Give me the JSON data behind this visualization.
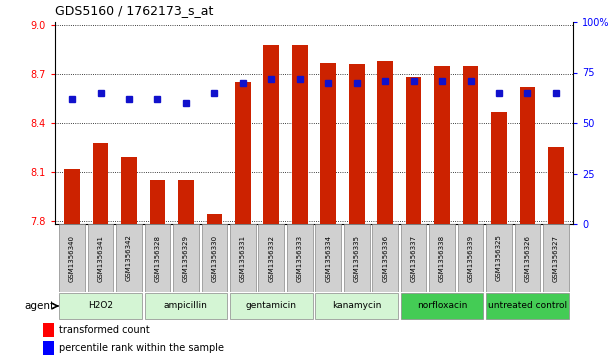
{
  "title": "GDS5160 / 1762173_s_at",
  "samples": [
    "GSM1356340",
    "GSM1356341",
    "GSM1356342",
    "GSM1356328",
    "GSM1356329",
    "GSM1356330",
    "GSM1356331",
    "GSM1356332",
    "GSM1356333",
    "GSM1356334",
    "GSM1356335",
    "GSM1356336",
    "GSM1356337",
    "GSM1356338",
    "GSM1356339",
    "GSM1356325",
    "GSM1356326",
    "GSM1356327"
  ],
  "transformed_counts": [
    8.12,
    8.28,
    8.19,
    8.05,
    8.05,
    7.84,
    8.65,
    8.88,
    8.88,
    8.77,
    8.76,
    8.78,
    8.68,
    8.75,
    8.75,
    8.47,
    8.62,
    8.25
  ],
  "percentile_ranks": [
    62,
    65,
    62,
    62,
    60,
    65,
    70,
    72,
    72,
    70,
    70,
    71,
    71,
    71,
    71,
    65,
    65,
    65
  ],
  "agents": [
    {
      "label": "H2O2",
      "start": 0,
      "end": 3,
      "color": "#d4f5d4"
    },
    {
      "label": "ampicillin",
      "start": 3,
      "end": 6,
      "color": "#d4f5d4"
    },
    {
      "label": "gentamicin",
      "start": 6,
      "end": 9,
      "color": "#d4f5d4"
    },
    {
      "label": "kanamycin",
      "start": 9,
      "end": 12,
      "color": "#d4f5d4"
    },
    {
      "label": "norfloxacin",
      "start": 12,
      "end": 15,
      "color": "#44cc55"
    },
    {
      "label": "untreated control",
      "start": 15,
      "end": 18,
      "color": "#44cc55"
    }
  ],
  "ylim_left": [
    7.78,
    9.02
  ],
  "ylim_right": [
    0,
    100
  ],
  "yticks_left": [
    7.8,
    8.1,
    8.4,
    8.7,
    9.0
  ],
  "yticks_right": [
    0,
    25,
    50,
    75,
    100
  ],
  "bar_color": "#cc2200",
  "dot_color": "#1111cc",
  "bar_width": 0.55,
  "bg_plot": "#ffffff",
  "sample_box_color": "#d0d0d0"
}
